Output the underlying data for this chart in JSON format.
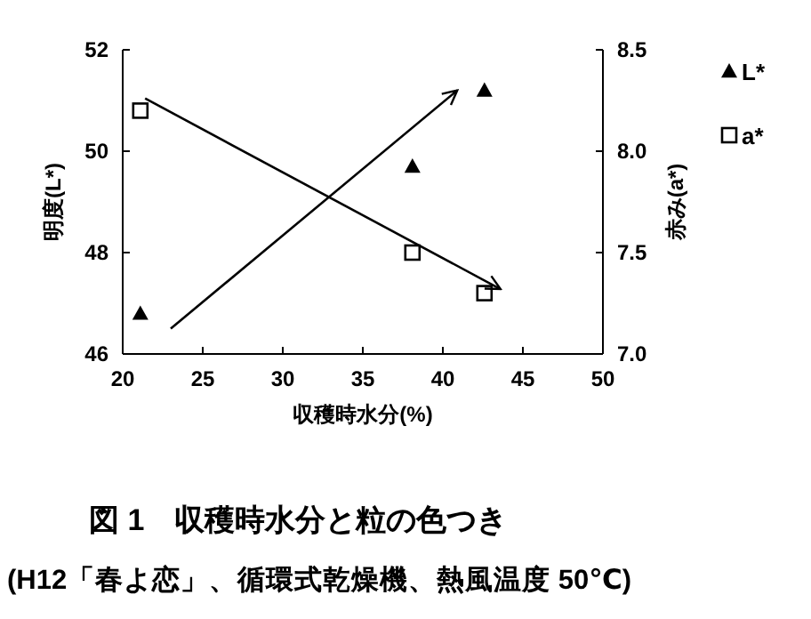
{
  "chart_data": {
    "type": "scatter",
    "title": "図 1　収穫時水分と粒の色つき",
    "subtitle": "(H12「春よ恋」、循環式乾燥機、熱風温度 50℃)",
    "xlabel": "収穫時水分(%)",
    "ylabel": "明度(L*)",
    "y2label": "赤み(a*)",
    "xlim": [
      20,
      50
    ],
    "xticks": [
      20,
      25,
      30,
      35,
      40,
      45,
      50
    ],
    "ylim": [
      46,
      52
    ],
    "yticks": [
      46,
      48,
      50,
      52
    ],
    "y2lim": [
      7.0,
      8.5
    ],
    "y2ticks": [
      {
        "value": 7.0,
        "label": "7.0"
      },
      {
        "value": 7.5,
        "label": "7.5"
      },
      {
        "value": 8.0,
        "label": "8.0"
      },
      {
        "value": 8.5,
        "label": "8.5"
      }
    ],
    "grid": false,
    "legend": "top right",
    "series": [
      {
        "name": "L*",
        "color": "#000000",
        "marker": "triangle",
        "x": [
          21.1,
          38.1,
          42.6
        ],
        "values": [
          46.8,
          49.7,
          51.2
        ]
      },
      {
        "name": "a*",
        "color": "#000000",
        "marker": "square",
        "axis": "y2",
        "x": [
          21.1,
          38.1,
          42.6
        ],
        "values": [
          8.2,
          7.5,
          7.3
        ]
      },
      {
        "type": "line",
        "color": "#000000",
        "marker": "none",
        "x": [
          23.0,
          40.9
        ],
        "values": [
          46.5,
          51.2
        ]
      },
      {
        "type": "line",
        "color": "#000000",
        "marker": "none",
        "axis": "y2",
        "x": [
          21.4,
          43.6
        ],
        "values": [
          8.26,
          7.32
        ]
      }
    ]
  }
}
